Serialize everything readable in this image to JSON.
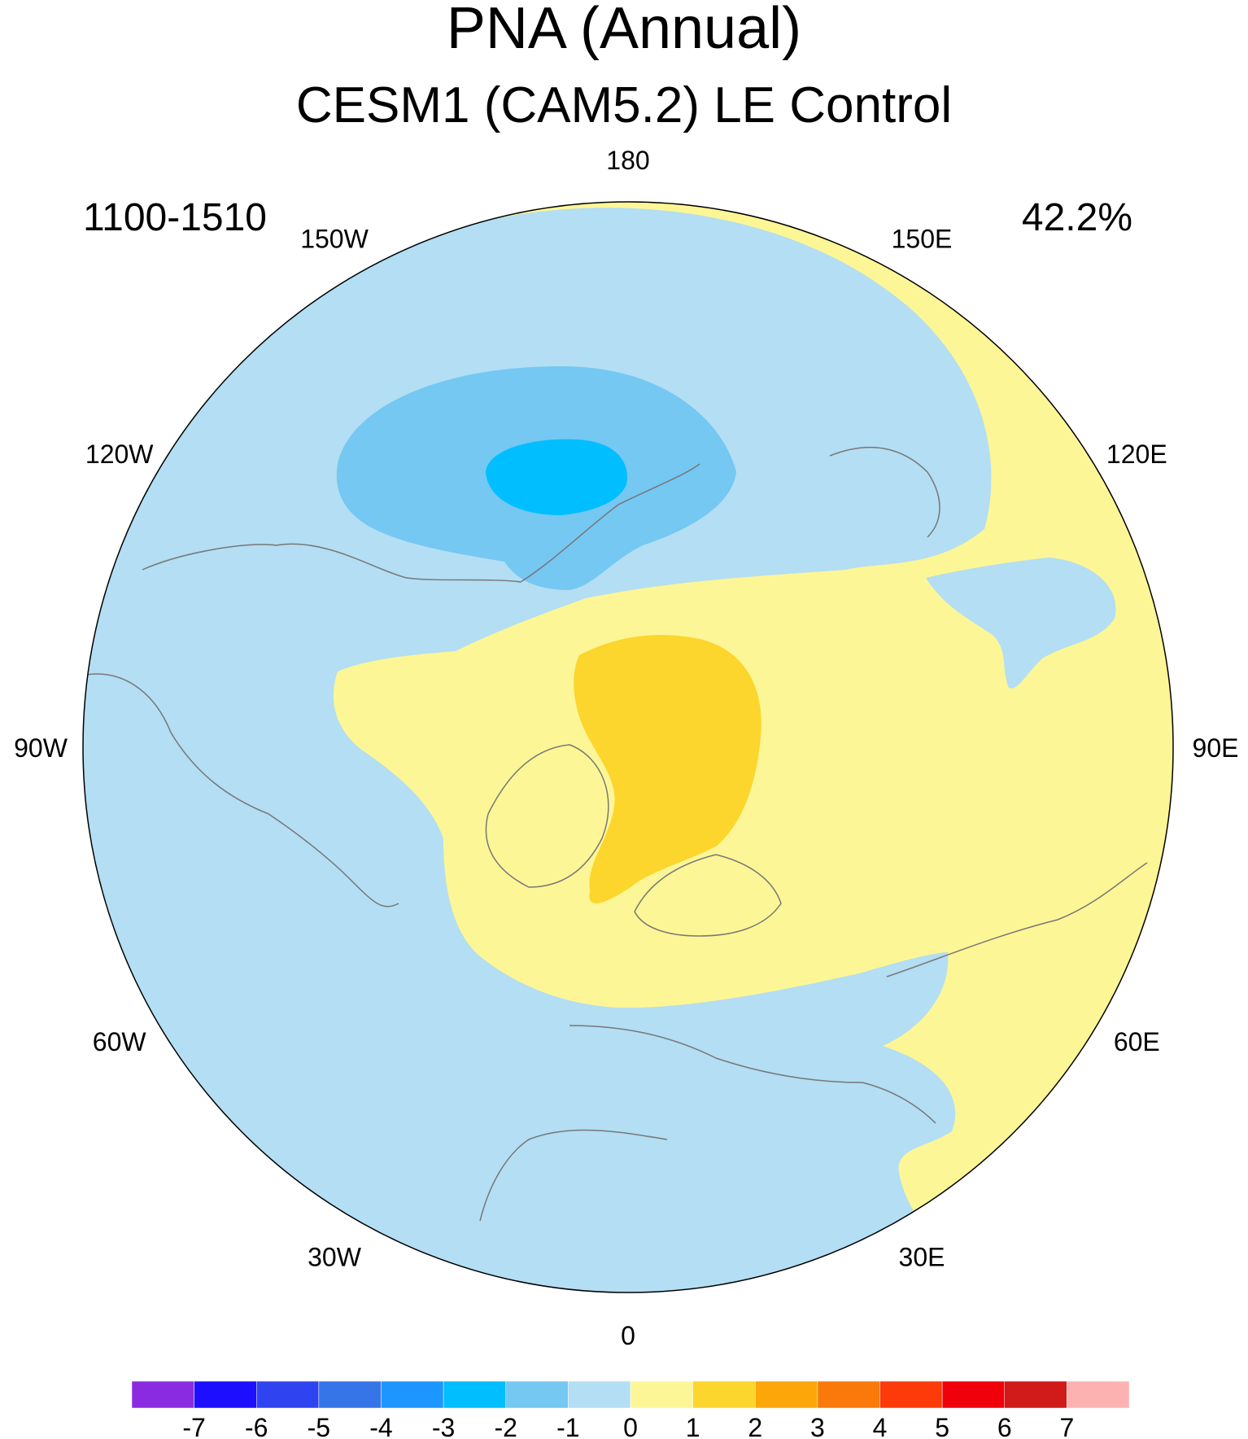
{
  "title": "PNA (Annual)",
  "subtitle": "CESM1 (CAM5.2) LE Control",
  "period": "1100-1510",
  "variance": "42.2%",
  "longitude_labels": [
    {
      "text": "180",
      "lon": 180
    },
    {
      "text": "150E",
      "lon": 150
    },
    {
      "text": "120E",
      "lon": 120
    },
    {
      "text": "90E",
      "lon": 90
    },
    {
      "text": "60E",
      "lon": 60
    },
    {
      "text": "30E",
      "lon": 30
    },
    {
      "text": "0",
      "lon": 0
    },
    {
      "text": "30W",
      "lon": -30
    },
    {
      "text": "60W",
      "lon": -60
    },
    {
      "text": "90W",
      "lon": -90
    },
    {
      "text": "120W",
      "lon": -120
    },
    {
      "text": "150W",
      "lon": -150
    }
  ],
  "colorbar": {
    "labels": [
      "-7",
      "-6",
      "-5",
      "-4",
      "-3",
      "-2",
      "-1",
      "0",
      "1",
      "2",
      "3",
      "4",
      "5",
      "6",
      "7"
    ],
    "colors": [
      "#8a2be2",
      "#1e0eff",
      "#2f44f0",
      "#3575e8",
      "#1e96ff",
      "#00beff",
      "#74c8f2",
      "#b3def3",
      "#fdf696",
      "#fcd52d",
      "#fca60a",
      "#f97a0a",
      "#fd3a0a",
      "#f0000a",
      "#d11a1a",
      "#fdb2b2"
    ]
  },
  "field_colors": {
    "ocean_base": "#b3def3",
    "neg_1_2": "#74c8f2",
    "neg_2_3": "#00beff",
    "pos_0_1": "#fdf696",
    "pos_1_2": "#fcd52d",
    "coastline": "#777777"
  }
}
